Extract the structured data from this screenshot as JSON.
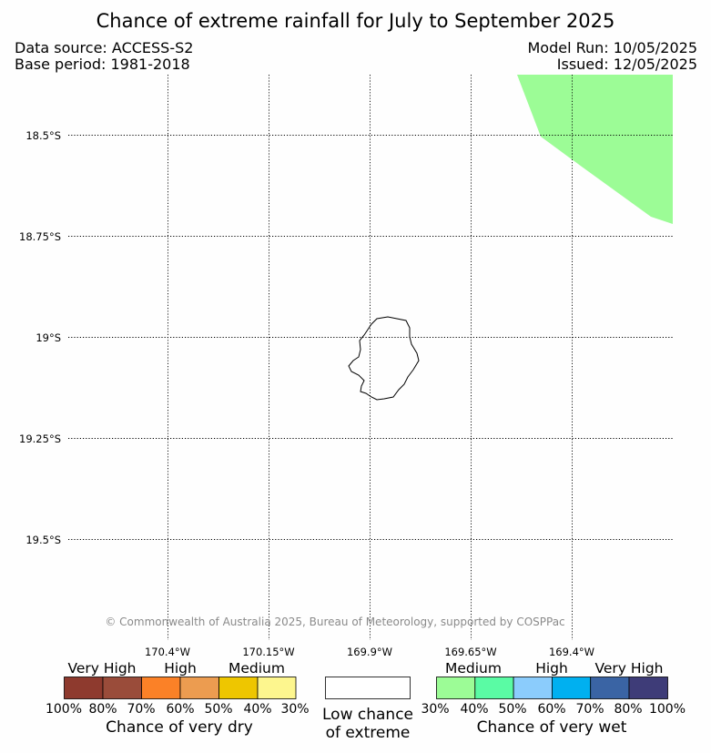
{
  "header": {
    "title": "Chance of extreme rainfall for July to September 2025",
    "data_source": "Data source: ACCESS-S2",
    "base_period": "Base period: 1981-2018",
    "model_run": "Model Run: 10/05/2025",
    "issued": "Issued: 12/05/2025"
  },
  "map": {
    "lat_labels": [
      "18.5°S",
      "18.75°S",
      "19°S",
      "19.25°S",
      "19.5°S"
    ],
    "lon_labels": [
      "170.4°W",
      "170.15°W",
      "169.9°W",
      "169.65°W",
      "169.4°W"
    ],
    "shaded_region_color": "#9cfc96",
    "shaded_region_category": "Medium chance of very wet",
    "copyright": "© Commonwealth of Australia 2025, Bureau of Meteorology, supported by COSPPac"
  },
  "legend": {
    "dry": {
      "categories": [
        "Very High",
        "High",
        "Medium"
      ],
      "colors": [
        "#8e3a2e",
        "#9a4c3a",
        "#fb8127",
        "#ec9c50",
        "#eec600",
        "#fdf68e"
      ],
      "ticks": [
        "100%",
        "80%",
        "70%",
        "60%",
        "50%",
        "40%",
        "30%"
      ],
      "caption": "Chance of very dry"
    },
    "neutral": {
      "color": "#ffffff",
      "caption_line1": "Low chance",
      "caption_line2": "of extreme"
    },
    "wet": {
      "categories": [
        "Medium",
        "High",
        "Very High"
      ],
      "colors": [
        "#9cfc96",
        "#5afba4",
        "#8bccfc",
        "#00b0f0",
        "#3a64a4",
        "#3e3c78"
      ],
      "ticks": [
        "30%",
        "40%",
        "50%",
        "60%",
        "70%",
        "80%",
        "100%"
      ],
      "caption": "Chance of very wet"
    }
  }
}
